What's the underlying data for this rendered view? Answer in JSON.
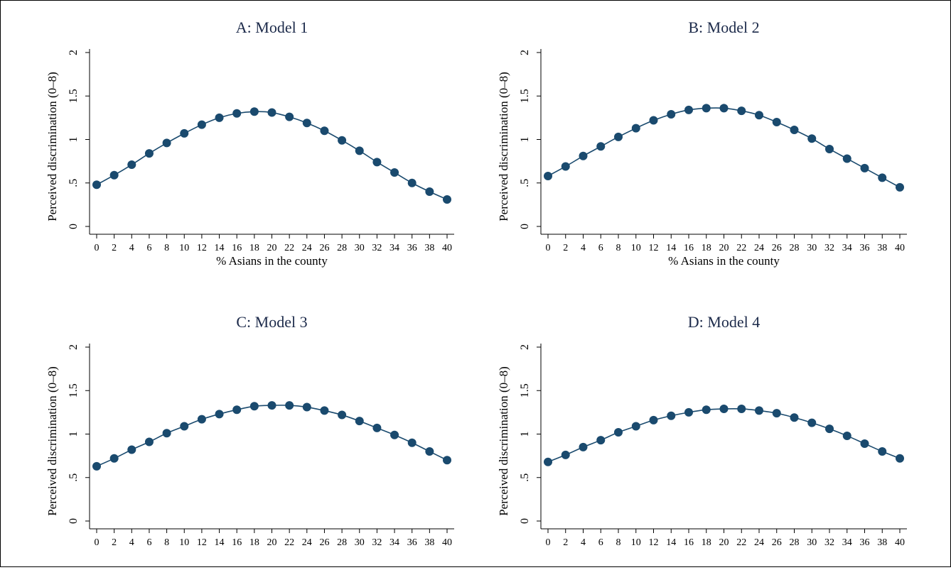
{
  "chart_data": [
    {
      "type": "line",
      "title": "A: Model 1",
      "xlabel": "% Asians in the county",
      "ylabel": "Perceived discrimination (0–8)",
      "x": [
        0,
        2,
        4,
        6,
        8,
        10,
        12,
        14,
        16,
        18,
        20,
        22,
        24,
        26,
        28,
        30,
        32,
        34,
        36,
        38,
        40
      ],
      "values": [
        0.48,
        0.59,
        0.71,
        0.84,
        0.96,
        1.07,
        1.17,
        1.25,
        1.3,
        1.32,
        1.31,
        1.26,
        1.19,
        1.1,
        0.99,
        0.87,
        0.74,
        0.62,
        0.5,
        0.4,
        0.31
      ],
      "yticks": [
        "0",
        ".5",
        "1",
        "1.5",
        "2"
      ],
      "ylim": [
        0,
        2
      ],
      "xlim": [
        0,
        40
      ],
      "grid": false,
      "color": "#1a4a6e"
    },
    {
      "type": "line",
      "title": "B: Model 2",
      "xlabel": "% Asians in the county",
      "ylabel": "Perceived discrimination (0–8)",
      "x": [
        0,
        2,
        4,
        6,
        8,
        10,
        12,
        14,
        16,
        18,
        20,
        22,
        24,
        26,
        28,
        30,
        32,
        34,
        36,
        38,
        40
      ],
      "values": [
        0.58,
        0.69,
        0.81,
        0.92,
        1.03,
        1.13,
        1.22,
        1.29,
        1.34,
        1.36,
        1.36,
        1.33,
        1.28,
        1.2,
        1.11,
        1.01,
        0.89,
        0.78,
        0.67,
        0.56,
        0.45
      ],
      "yticks": [
        "0",
        ".5",
        "1",
        "1.5",
        "2"
      ],
      "ylim": [
        0,
        2
      ],
      "xlim": [
        0,
        40
      ],
      "grid": false,
      "color": "#1a4a6e"
    },
    {
      "type": "line",
      "title": "C: Model 3",
      "xlabel": "",
      "ylabel": "Perceived discrimination (0–8)",
      "x": [
        0,
        2,
        4,
        6,
        8,
        10,
        12,
        14,
        16,
        18,
        20,
        22,
        24,
        26,
        28,
        30,
        32,
        34,
        36,
        38,
        40
      ],
      "values": [
        0.63,
        0.72,
        0.82,
        0.91,
        1.01,
        1.09,
        1.17,
        1.23,
        1.28,
        1.32,
        1.33,
        1.33,
        1.31,
        1.27,
        1.22,
        1.15,
        1.07,
        0.99,
        0.9,
        0.8,
        0.7
      ],
      "yticks": [
        "0",
        ".5",
        "1",
        "1.5",
        "2"
      ],
      "ylim": [
        0,
        2
      ],
      "xlim": [
        0,
        40
      ],
      "grid": false,
      "color": "#1a4a6e"
    },
    {
      "type": "line",
      "title": "D: Model 4",
      "xlabel": "",
      "ylabel": "Perceived discrimination (0–8)",
      "x": [
        0,
        2,
        4,
        6,
        8,
        10,
        12,
        14,
        16,
        18,
        20,
        22,
        24,
        26,
        28,
        30,
        32,
        34,
        36,
        38,
        40
      ],
      "values": [
        0.68,
        0.76,
        0.85,
        0.93,
        1.02,
        1.09,
        1.16,
        1.21,
        1.25,
        1.28,
        1.29,
        1.29,
        1.27,
        1.24,
        1.19,
        1.13,
        1.06,
        0.98,
        0.89,
        0.8,
        0.72
      ],
      "yticks": [
        "0",
        ".5",
        "1",
        "1.5",
        "2"
      ],
      "ylim": [
        0,
        2
      ],
      "xlim": [
        0,
        40
      ],
      "grid": false,
      "color": "#1a4a6e"
    }
  ]
}
